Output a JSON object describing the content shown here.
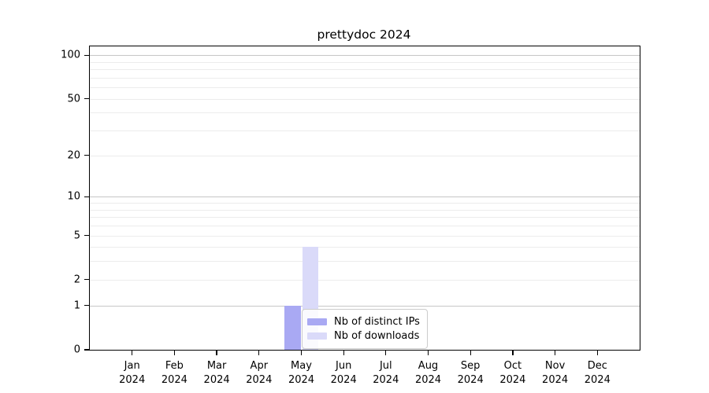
{
  "title": "prettydoc 2024",
  "chart_data": {
    "type": "bar",
    "title": "prettydoc 2024",
    "categories": [
      "Jan",
      "Feb",
      "Mar",
      "Apr",
      "May",
      "Jun",
      "Jul",
      "Aug",
      "Sep",
      "Oct",
      "Nov",
      "Dec"
    ],
    "category_sub_label": "2024",
    "series": [
      {
        "name": "Nb of distinct IPs",
        "color": "#a9a9f3",
        "values": [
          0,
          0,
          0,
          0,
          1,
          0,
          0,
          0,
          0,
          0,
          0,
          0
        ]
      },
      {
        "name": "Nb of downloads",
        "color": "#dadaf9",
        "values": [
          0,
          0,
          0,
          0,
          4,
          0,
          0,
          0,
          0,
          0,
          0,
          0
        ]
      }
    ],
    "xlabel": "",
    "ylabel": "",
    "yscale": "log10(1+x)",
    "ylim": [
      0,
      115
    ],
    "yticks": [
      {
        "value": 0,
        "label": "0"
      },
      {
        "value": 1,
        "label": "1"
      },
      {
        "value": 2,
        "label": "2"
      },
      {
        "value": 5,
        "label": "5"
      },
      {
        "value": 10,
        "label": "10"
      },
      {
        "value": 20,
        "label": "20"
      },
      {
        "value": 50,
        "label": "50"
      },
      {
        "value": 100,
        "label": "100"
      }
    ],
    "grid": {
      "on": true,
      "major_values": [
        1,
        10,
        100
      ],
      "minor_values": [
        2,
        3,
        4,
        5,
        6,
        7,
        8,
        9,
        20,
        30,
        40,
        50,
        60,
        70,
        80,
        90
      ],
      "major_color": "#c6c6c6",
      "minor_color": "#ececec"
    },
    "legend": {
      "position": "lower center",
      "entries": [
        {
          "label": "Nb of distinct IPs",
          "color": "#a9a9f3"
        },
        {
          "label": "Nb of downloads",
          "color": "#dadaf9"
        }
      ]
    }
  }
}
